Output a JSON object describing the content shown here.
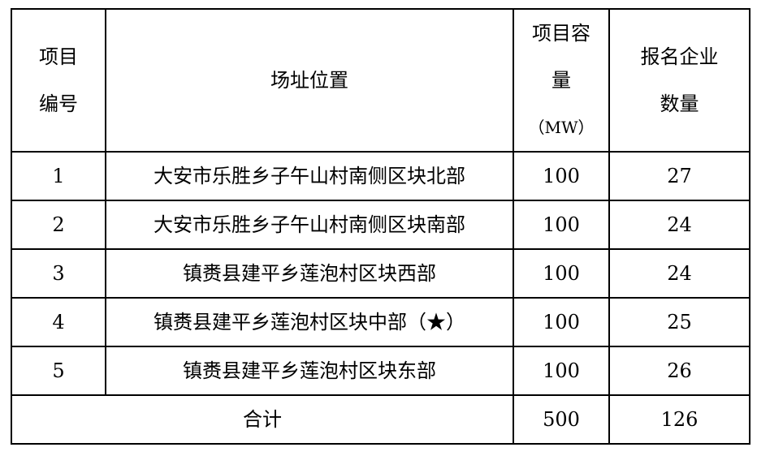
{
  "table": {
    "headers": {
      "id": [
        "项目",
        "编号"
      ],
      "location": "场址位置",
      "capacity": [
        "项目容",
        "量",
        "（MW）"
      ],
      "companies": [
        "报名企业",
        "数量"
      ]
    },
    "rows": [
      {
        "id": "1",
        "location": "大安市乐胜乡子午山村南侧区块北部",
        "capacity": "100",
        "companies": "27"
      },
      {
        "id": "2",
        "location": "大安市乐胜乡子午山村南侧区块南部",
        "capacity": "100",
        "companies": "24"
      },
      {
        "id": "3",
        "location": "镇赉县建平乡莲泡村区块西部",
        "capacity": "100",
        "companies": "24"
      },
      {
        "id": "4",
        "location": "镇赉县建平乡莲泡村区块中部（★）",
        "capacity": "100",
        "companies": "25"
      },
      {
        "id": "5",
        "location": "镇赉县建平乡莲泡村区块东部",
        "capacity": "100",
        "companies": "26"
      }
    ],
    "total": {
      "label": "合计",
      "capacity": "500",
      "companies": "126"
    }
  }
}
